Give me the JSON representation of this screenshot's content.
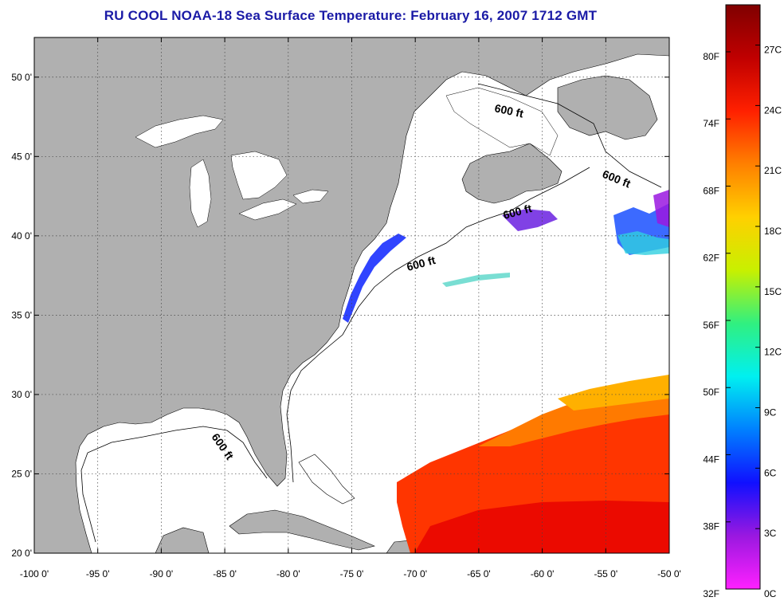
{
  "title": "RU COOL  NOAA-18  Sea Surface Temperature:  February 16, 2007 1712 GMT",
  "map": {
    "lon_range": [
      -100,
      -50
    ],
    "lat_range": [
      20,
      52.5
    ],
    "lon_ticks": [
      {
        "value": -100,
        "label": "-100 0'"
      },
      {
        "value": -95,
        "label": "-95 0'"
      },
      {
        "value": -90,
        "label": "-90 0'"
      },
      {
        "value": -85,
        "label": "-85 0'"
      },
      {
        "value": -80,
        "label": "-80 0'"
      },
      {
        "value": -75,
        "label": "-75 0'"
      },
      {
        "value": -70,
        "label": "-70 0'"
      },
      {
        "value": -65,
        "label": "-65 0'"
      },
      {
        "value": -60,
        "label": "-60 0'"
      },
      {
        "value": -55,
        "label": "-55 0'"
      },
      {
        "value": -50,
        "label": "-50 0'"
      }
    ],
    "lat_ticks": [
      {
        "value": 20,
        "label": "20 0'"
      },
      {
        "value": 25,
        "label": "25 0'"
      },
      {
        "value": 30,
        "label": "30 0'"
      },
      {
        "value": 35,
        "label": "35 0'"
      },
      {
        "value": 40,
        "label": "40 0'"
      },
      {
        "value": 45,
        "label": "45 0'"
      },
      {
        "value": 50,
        "label": "50 0'"
      }
    ],
    "contour_labels": [
      "600 ft",
      "600 ft",
      "600 ft",
      "600 ft",
      "600 ft"
    ],
    "land_color": "#b0b0b0",
    "ocean_color": "#ffffff",
    "grid": true
  },
  "colorbar": {
    "min_c": 0,
    "max_c": 29,
    "f_labels": [
      {
        "value": 32,
        "label": "32F"
      },
      {
        "value": 38,
        "label": "38F"
      },
      {
        "value": 44,
        "label": "44F"
      },
      {
        "value": 50,
        "label": "50F"
      },
      {
        "value": 56,
        "label": "56F"
      },
      {
        "value": 62,
        "label": "62F"
      },
      {
        "value": 68,
        "label": "68F"
      },
      {
        "value": 74,
        "label": "74F"
      },
      {
        "value": 80,
        "label": "80F"
      }
    ],
    "c_labels": [
      {
        "value": 0,
        "label": "0C"
      },
      {
        "value": 3,
        "label": "3C"
      },
      {
        "value": 6,
        "label": "6C"
      },
      {
        "value": 9,
        "label": "9C"
      },
      {
        "value": 12,
        "label": "12C"
      },
      {
        "value": 15,
        "label": "15C"
      },
      {
        "value": 18,
        "label": "18C"
      },
      {
        "value": 21,
        "label": "21C"
      },
      {
        "value": 24,
        "label": "24C"
      },
      {
        "value": 27,
        "label": "27C"
      }
    ],
    "colors": [
      "#ff20ff",
      "#9a18e0",
      "#1010ff",
      "#0080ff",
      "#00f0f0",
      "#30f080",
      "#c8f000",
      "#ffd000",
      "#ff8000",
      "#ff2000",
      "#c00000",
      "#800000"
    ]
  }
}
